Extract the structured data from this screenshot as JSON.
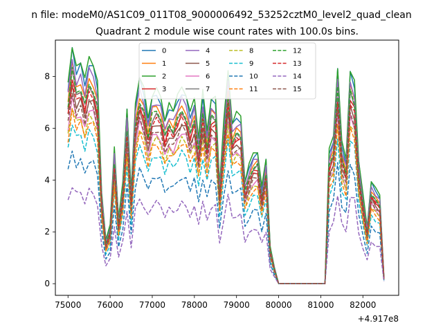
{
  "chart_data": {
    "type": "line",
    "suptitle": "n file: modeM0/AS1C09_011T08_9000006492_53252cztM0_level2_quad_clean",
    "title": "Quadrant 2 module wise count rates with 100.0s bins.",
    "xlabel": "",
    "ylabel": "",
    "x_offset_label": "+4.917e8",
    "xlim": [
      74700,
      82850
    ],
    "ylim": [
      -0.45,
      9.4
    ],
    "x_ticks": [
      75000,
      76000,
      77000,
      78000,
      79000,
      80000,
      81000,
      82000
    ],
    "x_tick_labels": [
      "75000",
      "76000",
      "77000",
      "78000",
      "79000",
      "80000",
      "81000",
      "82000"
    ],
    "y_ticks": [
      0,
      2,
      4,
      6,
      8
    ],
    "y_tick_labels": [
      "0",
      "2",
      "4",
      "6",
      "8"
    ],
    "grid": false,
    "legend_position": "top-center",
    "x": [
      75000,
      75100,
      75200,
      75300,
      75400,
      75500,
      75600,
      75700,
      75800,
      75900,
      76000,
      76100,
      76200,
      76300,
      76400,
      76500,
      76600,
      76700,
      76800,
      76900,
      77000,
      77100,
      77200,
      77300,
      77400,
      77500,
      77600,
      77700,
      77800,
      77900,
      78000,
      78100,
      78200,
      78300,
      78400,
      78500,
      78600,
      78700,
      78800,
      78900,
      79000,
      79100,
      79200,
      79300,
      79400,
      79500,
      79600,
      79700,
      79800,
      79900,
      80000,
      80100,
      80200,
      80300,
      80400,
      80500,
      80600,
      80700,
      80800,
      80900,
      81000,
      81100,
      81200,
      81300,
      81400,
      81500,
      81600,
      81700,
      81800,
      81900,
      82000,
      82100,
      82200,
      82300,
      82400,
      82500
    ],
    "base_profile": [
      1.0,
      1.19,
      1.07,
      1.1,
      1.0,
      1.12,
      1.09,
      0.99,
      0.45,
      0.22,
      0.29,
      0.68,
      0.33,
      0.5,
      0.87,
      0.45,
      0.89,
      1.03,
      0.96,
      0.82,
      0.94,
      0.96,
      0.93,
      0.82,
      0.89,
      0.86,
      0.92,
      0.97,
      0.94,
      0.84,
      0.92,
      0.73,
      0.95,
      0.76,
      0.93,
      0.92,
      0.49,
      0.8,
      1.05,
      0.8,
      0.84,
      0.83,
      0.51,
      0.59,
      0.65,
      0.66,
      0.48,
      0.62,
      0.18,
      0.08,
      0.0,
      0.0,
      0.0,
      0.0,
      0.0,
      0.0,
      0.0,
      0.0,
      0.0,
      0.0,
      0.0,
      0.0,
      0.66,
      0.73,
      1.08,
      0.7,
      0.62,
      1.07,
      1.0,
      0.61,
      0.44,
      0.28,
      0.51,
      0.47,
      0.44,
      0.03
    ],
    "series": [
      {
        "name": "0",
        "color": "#1f77b4",
        "dashed": false,
        "level": 7.6
      },
      {
        "name": "1",
        "color": "#ff7f0e",
        "dashed": false,
        "level": 7.1
      },
      {
        "name": "2",
        "color": "#2ca02c",
        "dashed": false,
        "level": 7.8
      },
      {
        "name": "3",
        "color": "#d62728",
        "dashed": false,
        "level": 6.7
      },
      {
        "name": "4",
        "color": "#9467bd",
        "dashed": false,
        "level": 7.3
      },
      {
        "name": "5",
        "color": "#8c564b",
        "dashed": false,
        "level": 6.4
      },
      {
        "name": "6",
        "color": "#e377c2",
        "dashed": false,
        "level": 6.0
      },
      {
        "name": "7",
        "color": "#7f7f7f",
        "dashed": false,
        "level": 6.8
      },
      {
        "name": "8",
        "color": "#bcbd22",
        "dashed": true,
        "level": 5.8
      },
      {
        "name": "9",
        "color": "#17becf",
        "dashed": true,
        "level": 5.2
      },
      {
        "name": "10",
        "color": "#1f77b4",
        "dashed": true,
        "level": 4.3
      },
      {
        "name": "11",
        "color": "#ff7f0e",
        "dashed": true,
        "level": 5.6
      },
      {
        "name": "12",
        "color": "#2ca02c",
        "dashed": true,
        "level": 6.9
      },
      {
        "name": "13",
        "color": "#d62728",
        "dashed": true,
        "level": 6.6
      },
      {
        "name": "14",
        "color": "#9467bd",
        "dashed": true,
        "level": 3.2
      },
      {
        "name": "15",
        "color": "#8c564b",
        "dashed": true,
        "level": 6.2
      }
    ]
  }
}
